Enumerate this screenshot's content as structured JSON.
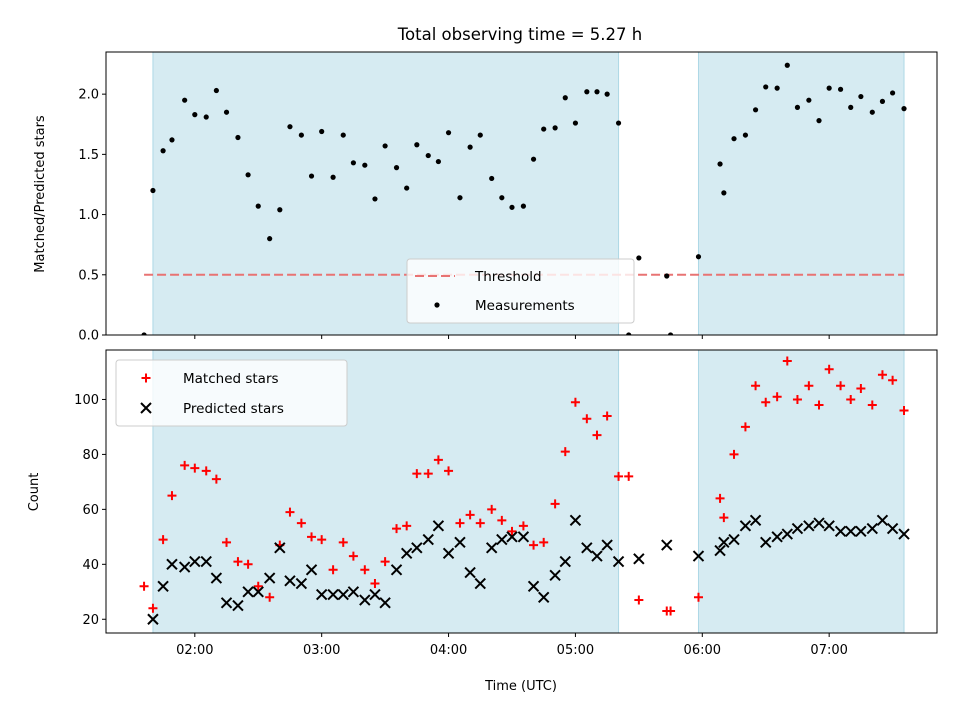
{
  "chart_data": [
    {
      "type": "scatter",
      "title": "Total observing time = 5.27 h",
      "xlabel": "",
      "ylabel": "Matched/Predicted stars",
      "xlim": [
        1.3,
        7.85
      ],
      "ylim": [
        0.0,
        2.35
      ],
      "yticks": [
        0.0,
        0.5,
        1.0,
        1.5,
        2.0
      ],
      "ytick_labels": [
        "0.0",
        "0.5",
        "1.0",
        "1.5",
        "2.0"
      ],
      "shaded_spans": [
        [
          1.67,
          5.34
        ],
        [
          5.97,
          7.59
        ]
      ],
      "threshold": {
        "name": "Threshold",
        "y": 0.5,
        "x": [
          1.6,
          7.59
        ],
        "color": "#e87373"
      },
      "legend_placement": "lower center",
      "series": [
        {
          "name": "Measurements",
          "color": "#000000",
          "x": [
            1.6,
            1.67,
            1.75,
            1.82,
            1.92,
            2.0,
            2.09,
            2.17,
            2.25,
            2.34,
            2.42,
            2.5,
            2.59,
            2.67,
            2.75,
            2.84,
            2.92,
            3.0,
            3.09,
            3.17,
            3.25,
            3.34,
            3.42,
            3.5,
            3.59,
            3.67,
            3.75,
            3.84,
            3.92,
            4.0,
            4.09,
            4.17,
            4.25,
            4.34,
            4.42,
            4.5,
            4.59,
            4.67,
            4.75,
            4.84,
            4.92,
            5.0,
            5.09,
            5.17,
            5.25,
            5.34,
            5.42,
            5.5,
            5.72,
            5.75,
            5.97,
            6.14,
            6.17,
            6.25,
            6.34,
            6.42,
            6.5,
            6.59,
            6.67,
            6.75,
            6.84,
            6.92,
            7.0,
            7.09,
            7.17,
            7.25,
            7.34,
            7.42,
            7.5,
            7.59
          ],
          "y": [
            0.0,
            1.2,
            1.53,
            1.62,
            1.95,
            1.83,
            1.81,
            2.03,
            1.85,
            1.64,
            1.33,
            1.07,
            0.8,
            1.04,
            1.73,
            1.66,
            1.32,
            1.69,
            1.31,
            1.66,
            1.43,
            1.41,
            1.13,
            1.57,
            1.39,
            1.22,
            1.58,
            1.49,
            1.44,
            1.68,
            1.14,
            1.56,
            1.66,
            1.3,
            1.14,
            1.06,
            1.07,
            1.46,
            1.71,
            1.72,
            1.97,
            1.76,
            2.02,
            2.02,
            2.0,
            1.76,
            0.0,
            0.64,
            0.49,
            0.0,
            0.65,
            1.42,
            1.18,
            1.63,
            1.66,
            1.87,
            2.06,
            2.05,
            2.24,
            1.89,
            1.95,
            1.78,
            2.05,
            2.04,
            1.89,
            1.98,
            1.85,
            1.94,
            2.01,
            1.88
          ]
        }
      ]
    },
    {
      "type": "scatter",
      "title": "",
      "xlabel": "Time (UTC)",
      "ylabel": "Count",
      "xlim": [
        1.3,
        7.85
      ],
      "ylim": [
        15,
        118
      ],
      "xticks": [
        2,
        3,
        4,
        5,
        6,
        7
      ],
      "xtick_labels": [
        "02:00",
        "03:00",
        "04:00",
        "05:00",
        "06:00",
        "07:00"
      ],
      "yticks": [
        20,
        40,
        60,
        80,
        100
      ],
      "ytick_labels": [
        "20",
        "40",
        "60",
        "80",
        "100"
      ],
      "shaded_spans": [
        [
          1.67,
          5.34
        ],
        [
          5.97,
          7.59
        ]
      ],
      "legend_placement": "upper left",
      "series": [
        {
          "name": "Matched stars",
          "color": "#ff0000",
          "marker": "plus",
          "x": [
            1.6,
            1.67,
            1.75,
            1.82,
            1.92,
            2.0,
            2.09,
            2.17,
            2.25,
            2.34,
            2.42,
            2.5,
            2.59,
            2.67,
            2.75,
            2.84,
            2.92,
            3.0,
            3.09,
            3.17,
            3.25,
            3.34,
            3.42,
            3.5,
            3.59,
            3.67,
            3.75,
            3.84,
            3.92,
            4.0,
            4.09,
            4.17,
            4.25,
            4.34,
            4.42,
            4.5,
            4.59,
            4.67,
            4.75,
            4.84,
            4.92,
            5.0,
            5.09,
            5.17,
            5.25,
            5.34,
            5.42,
            5.5,
            5.72,
            5.75,
            5.97,
            6.14,
            6.17,
            6.25,
            6.34,
            6.42,
            6.5,
            6.59,
            6.67,
            6.75,
            6.84,
            6.92,
            7.0,
            7.09,
            7.17,
            7.25,
            7.34,
            7.42,
            7.5,
            7.59
          ],
          "y": [
            32,
            24,
            49,
            65,
            76,
            75,
            74,
            71,
            48,
            41,
            40,
            32,
            28,
            47,
            59,
            55,
            50,
            49,
            38,
            48,
            43,
            38,
            33,
            41,
            53,
            54,
            73,
            73,
            78,
            74,
            55,
            58,
            55,
            60,
            56,
            52,
            54,
            47,
            48,
            62,
            81,
            99,
            93,
            87,
            94,
            72,
            72,
            27,
            23,
            23,
            28,
            64,
            57,
            80,
            90,
            105,
            99,
            101,
            114,
            100,
            105,
            98,
            111,
            105,
            100,
            104,
            98,
            109,
            107,
            96
          ]
        },
        {
          "name": "Predicted stars",
          "color": "#000000",
          "marker": "x",
          "x": [
            1.67,
            1.75,
            1.82,
            1.92,
            2.0,
            2.09,
            2.17,
            2.25,
            2.34,
            2.42,
            2.5,
            2.59,
            2.67,
            2.75,
            2.84,
            2.92,
            3.0,
            3.09,
            3.17,
            3.25,
            3.34,
            3.42,
            3.5,
            3.59,
            3.67,
            3.75,
            3.84,
            3.92,
            4.0,
            4.09,
            4.17,
            4.25,
            4.34,
            4.42,
            4.5,
            4.59,
            4.67,
            4.75,
            4.84,
            4.92,
            5.0,
            5.09,
            5.17,
            5.25,
            5.34,
            5.5,
            5.72,
            5.97,
            6.14,
            6.17,
            6.25,
            6.34,
            6.42,
            6.5,
            6.59,
            6.67,
            6.75,
            6.84,
            6.92,
            7.0,
            7.09,
            7.17,
            7.25,
            7.34,
            7.42,
            7.5,
            7.59
          ],
          "y": [
            20,
            32,
            40,
            39,
            41,
            41,
            35,
            26,
            25,
            30,
            30,
            35,
            46,
            34,
            33,
            38,
            29,
            29,
            29,
            30,
            27,
            29,
            26,
            38,
            44,
            46,
            49,
            54,
            44,
            48,
            37,
            33,
            46,
            49,
            50,
            50,
            32,
            28,
            36,
            41,
            56,
            46,
            43,
            47,
            41,
            42,
            47,
            43,
            45,
            48,
            49,
            54,
            56,
            48,
            50,
            51,
            53,
            54,
            55,
            54,
            52,
            52,
            52,
            53,
            56,
            53,
            51
          ]
        }
      ]
    }
  ]
}
